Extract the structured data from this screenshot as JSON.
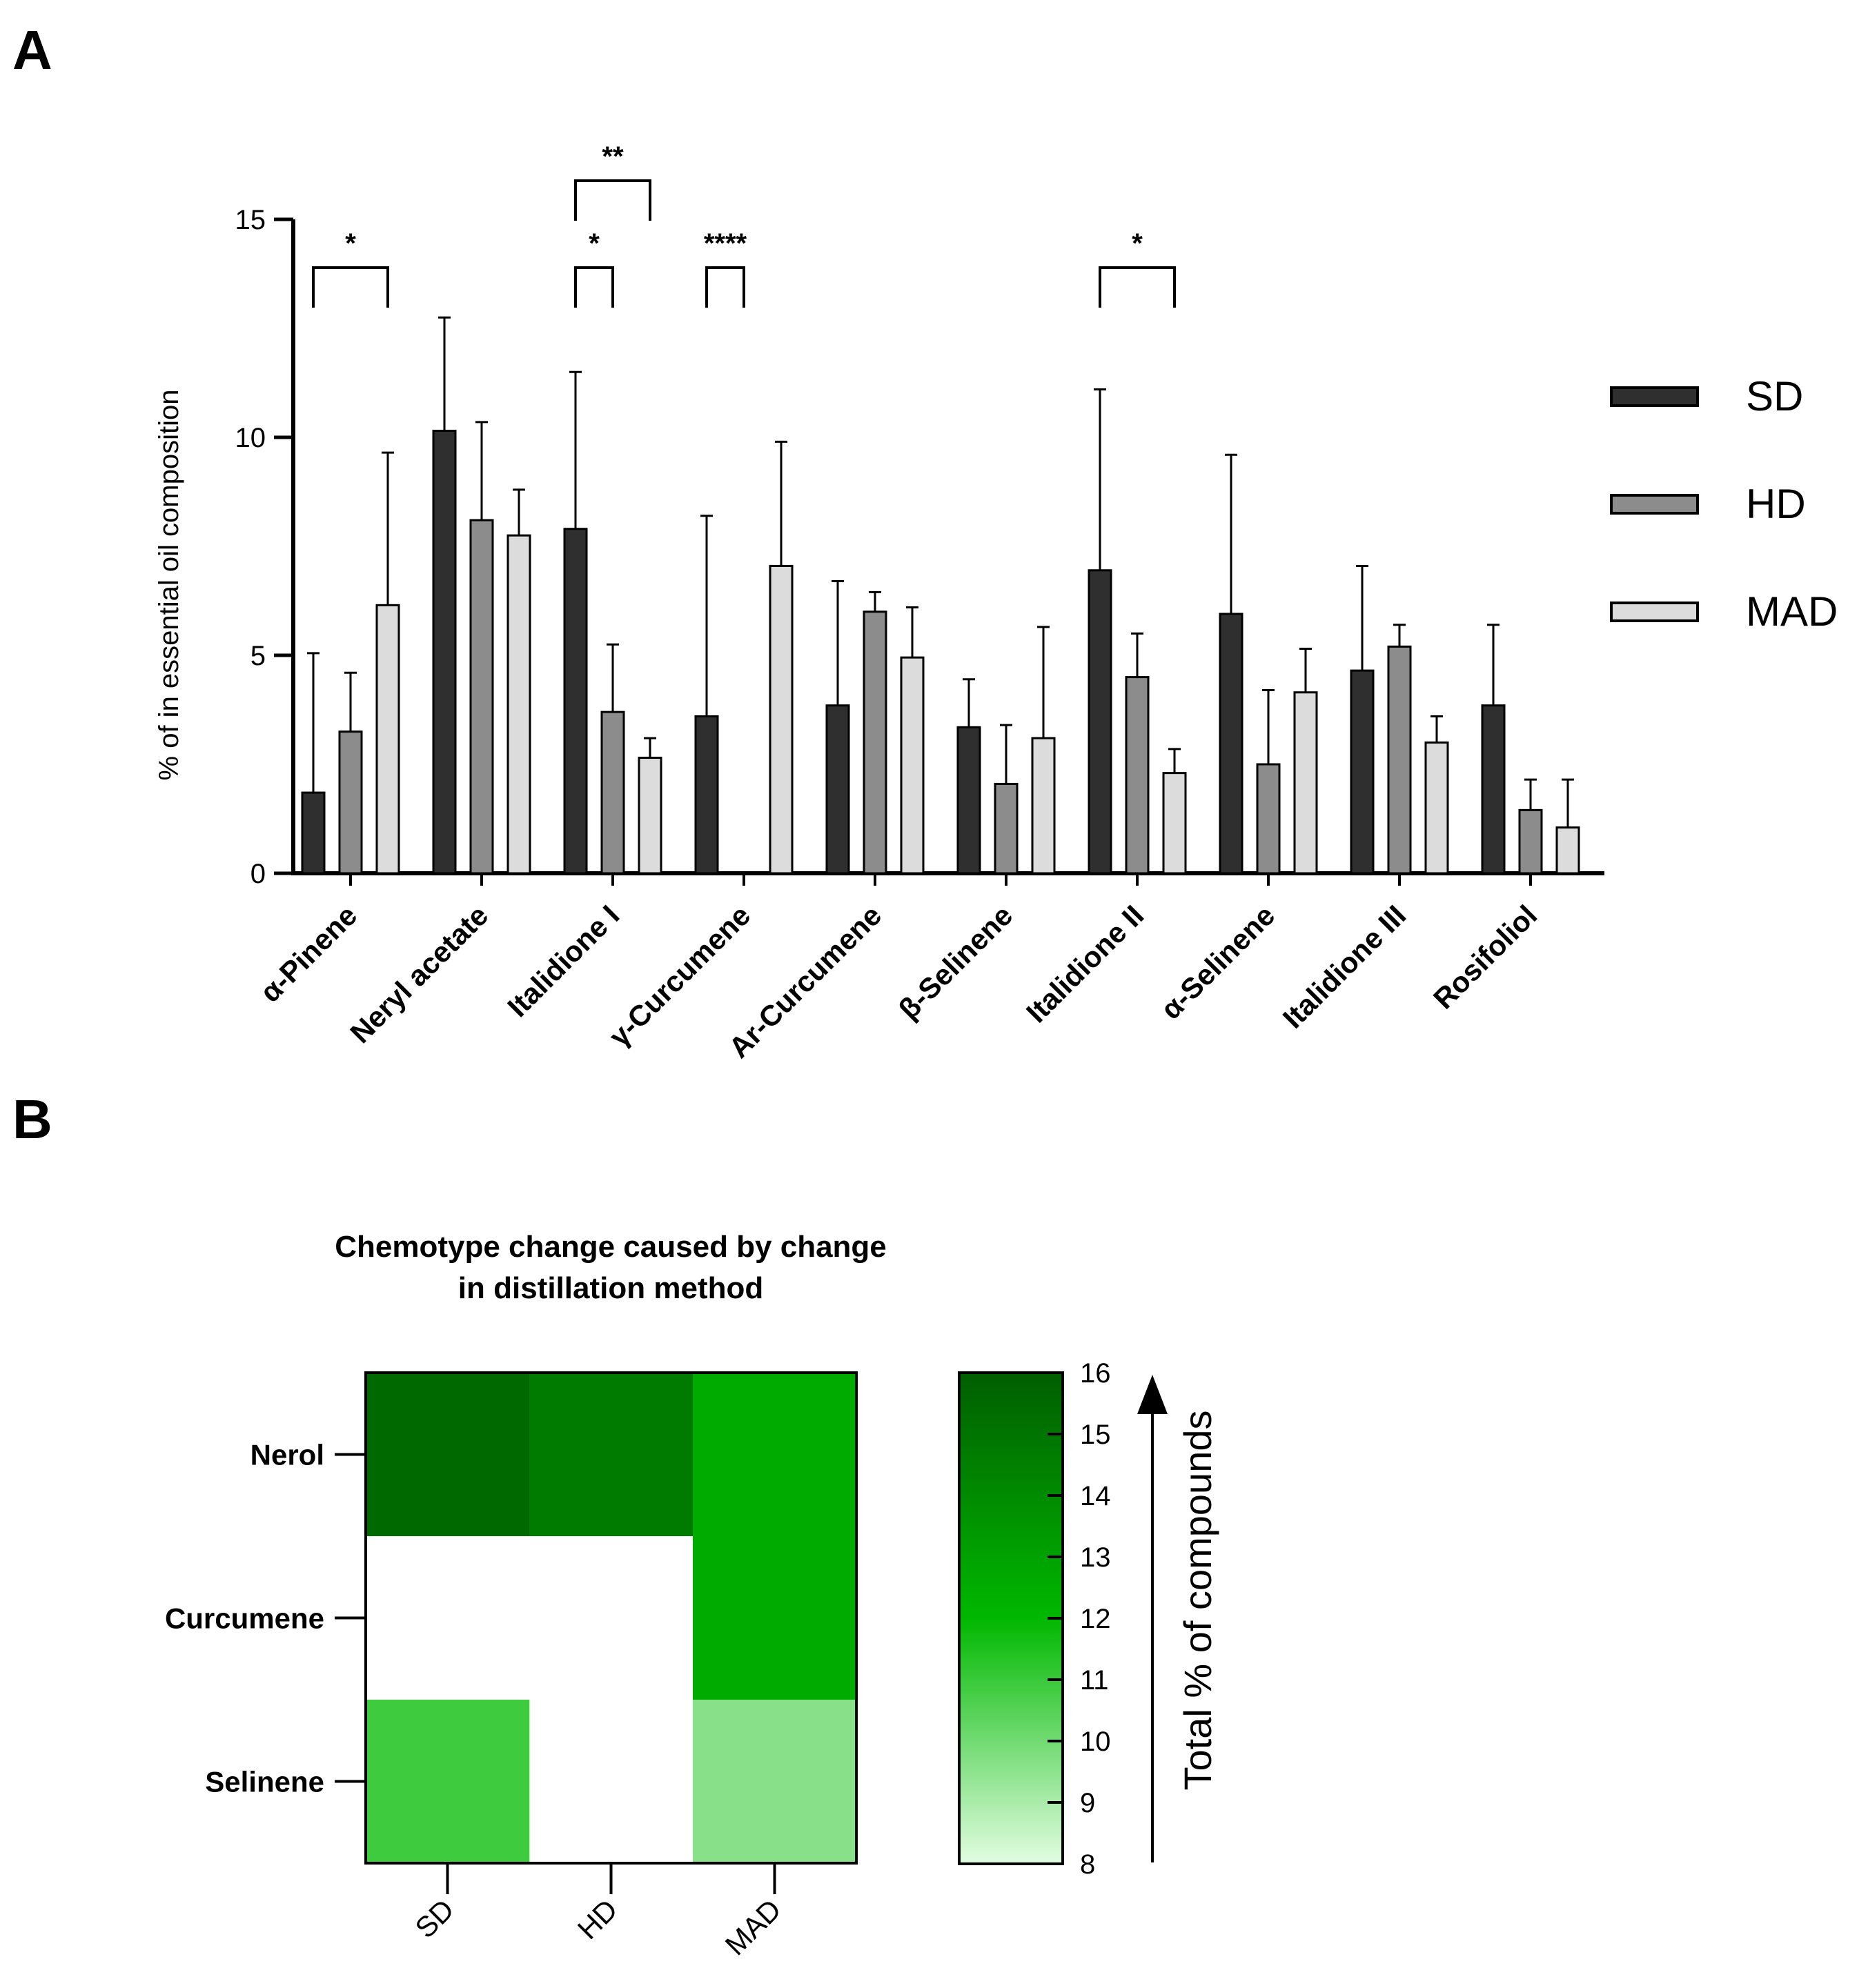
{
  "panels": {
    "a": "A",
    "b": "B"
  },
  "chart_data": [
    {
      "type": "bar",
      "panel": "A",
      "ylabel": "% of in essential oil composition",
      "ylim": [
        0,
        15
      ],
      "yticks": [
        0,
        5,
        10,
        15
      ],
      "categories": [
        "α-Pinene",
        "Neryl acetate",
        "Italidione I",
        "γ-Curcumene",
        "Ar-Curcumene",
        "β-Selinene",
        "Italidione II",
        "α-Selinene",
        "Italidione III",
        "Rosifoliol"
      ],
      "series": [
        {
          "name": "SD",
          "color": "#2f2f2f",
          "values": [
            1.85,
            10.15,
            7.9,
            3.6,
            3.85,
            3.35,
            6.95,
            5.95,
            4.65,
            3.85
          ],
          "errors": [
            3.2,
            2.6,
            3.6,
            4.6,
            2.85,
            1.1,
            4.15,
            3.65,
            2.4,
            1.85
          ]
        },
        {
          "name": "HD",
          "color": "#8c8c8c",
          "values": [
            3.25,
            8.1,
            3.7,
            0,
            6.0,
            2.05,
            4.5,
            2.5,
            5.2,
            1.45
          ],
          "errors": [
            1.35,
            2.25,
            1.55,
            0,
            0.45,
            1.35,
            1.0,
            1.7,
            0.5,
            0.7
          ]
        },
        {
          "name": "MAD",
          "color": "#dcdcdc",
          "values": [
            6.15,
            7.75,
            2.65,
            7.05,
            4.95,
            3.1,
            2.3,
            4.15,
            3.0,
            1.05
          ],
          "errors": [
            3.5,
            1.05,
            0.45,
            2.85,
            1.15,
            2.55,
            0.55,
            1.0,
            0.6,
            1.1
          ]
        }
      ],
      "significance": [
        {
          "category": "α-Pinene",
          "from": "SD",
          "to": "MAD",
          "label": "*"
        },
        {
          "category": "Italidione I",
          "from": "SD",
          "to": "HD",
          "label": "*"
        },
        {
          "category": "Italidione I",
          "from": "SD",
          "to": "MAD",
          "label": "**"
        },
        {
          "category": "γ-Curcumene",
          "from": "SD",
          "to": "HD",
          "label": "****"
        },
        {
          "category": "Italidione II",
          "from": "SD",
          "to": "MAD",
          "label": "*"
        }
      ],
      "legend": {
        "position": "right",
        "entries": [
          "SD",
          "HD",
          "MAD"
        ]
      }
    },
    {
      "type": "heatmap",
      "panel": "B",
      "title_lines": [
        "Chemotype change caused by change",
        "in distillation method"
      ],
      "columns": [
        "SD",
        "HD",
        "MAD"
      ],
      "rows": [
        "Nerol",
        "Curcumene",
        "Selinene"
      ],
      "values": [
        [
          15.5,
          14.7,
          12.6
        ],
        [
          null,
          null,
          12.6
        ],
        [
          10.9,
          null,
          9.6
        ]
      ],
      "colorbar": {
        "min": 8,
        "max": 16,
        "ticks": [
          8,
          9,
          10,
          11,
          12,
          13,
          14,
          15,
          16
        ],
        "label": "Total % of compounds",
        "colors": [
          "#e2fde2",
          "#00b800",
          "#005e00"
        ]
      }
    }
  ]
}
